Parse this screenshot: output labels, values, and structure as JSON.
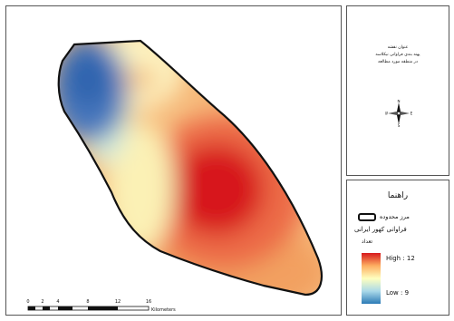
{
  "map": {
    "scale_ticks": [
      "0",
      "2",
      "4",
      "8",
      "12",
      "16"
    ],
    "scale_unit": "Kilometers"
  },
  "title_block": {
    "lines": [
      "عنوان نقشه",
      "پهنه بندی فراوانی نیکلاسه",
      "در منطقه مورد مطالعه"
    ],
    "north_arrow": {
      "icon": "compass-rose-icon",
      "labels": {
        "n": "N",
        "s": "S",
        "e": "E",
        "w": "W"
      }
    }
  },
  "legend": {
    "title": "راهنما",
    "boundary_label": "مرز محدوده",
    "layer_title": "فراوانی کهور ایرانی",
    "count_label": "تعداد",
    "high_label": "High : 12",
    "low_label": "Low : 9",
    "ramp_colors": [
      "#d7191c",
      "#fdae61",
      "#ffffbf",
      "#abd9e9",
      "#2c7bb6"
    ]
  }
}
